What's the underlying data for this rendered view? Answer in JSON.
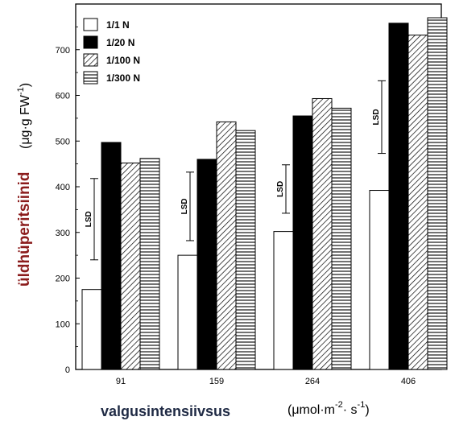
{
  "chart_data": {
    "type": "bar",
    "categories": [
      "91",
      "159",
      "264",
      "406"
    ],
    "series": [
      {
        "name": "1/1   N",
        "pattern": "white",
        "values": [
          175,
          250,
          302,
          392
        ]
      },
      {
        "name": "1/20 N",
        "pattern": "black",
        "values": [
          497,
          460,
          555,
          758
        ]
      },
      {
        "name": "1/100 N",
        "pattern": "diagonal",
        "values": [
          452,
          542,
          593,
          732
        ]
      },
      {
        "name": "1/300 N",
        "pattern": "horizontal",
        "values": [
          462,
          523,
          572,
          770
        ]
      }
    ],
    "lsd": [
      {
        "category": "91",
        "low": 240,
        "high": 418,
        "label": "LSD"
      },
      {
        "category": "159",
        "low": 282,
        "high": 432,
        "label": "LSD"
      },
      {
        "category": "264",
        "low": 342,
        "high": 448,
        "label": "LSD"
      },
      {
        "category": "406",
        "low": 473,
        "high": 632,
        "label": "LSD"
      }
    ],
    "ylim": [
      0,
      800
    ],
    "yticks": [
      "0",
      "100",
      "200",
      "300",
      "400",
      "500",
      "600",
      "700"
    ],
    "ylabel_main": "üldhüperitsiinid",
    "ylabel_unit": "(μg·g FW",
    "ylabel_unit_sup": "-1",
    "ylabel_unit_close": ")",
    "xlabel_main": "valgusintensiivsus",
    "xlabel_unit": "(μmol·m",
    "xlabel_unit_sup1": "-2",
    "xlabel_unit_mid": "· s",
    "xlabel_unit_sup2": "-1",
    "xlabel_unit_close": ")",
    "legend_position": "top-left",
    "grid": false,
    "colors": {
      "ylabel": "#8b1c1c",
      "xlabel": "#1f2a44",
      "bar_black": "#000000",
      "bar_white": "#ffffff"
    }
  }
}
